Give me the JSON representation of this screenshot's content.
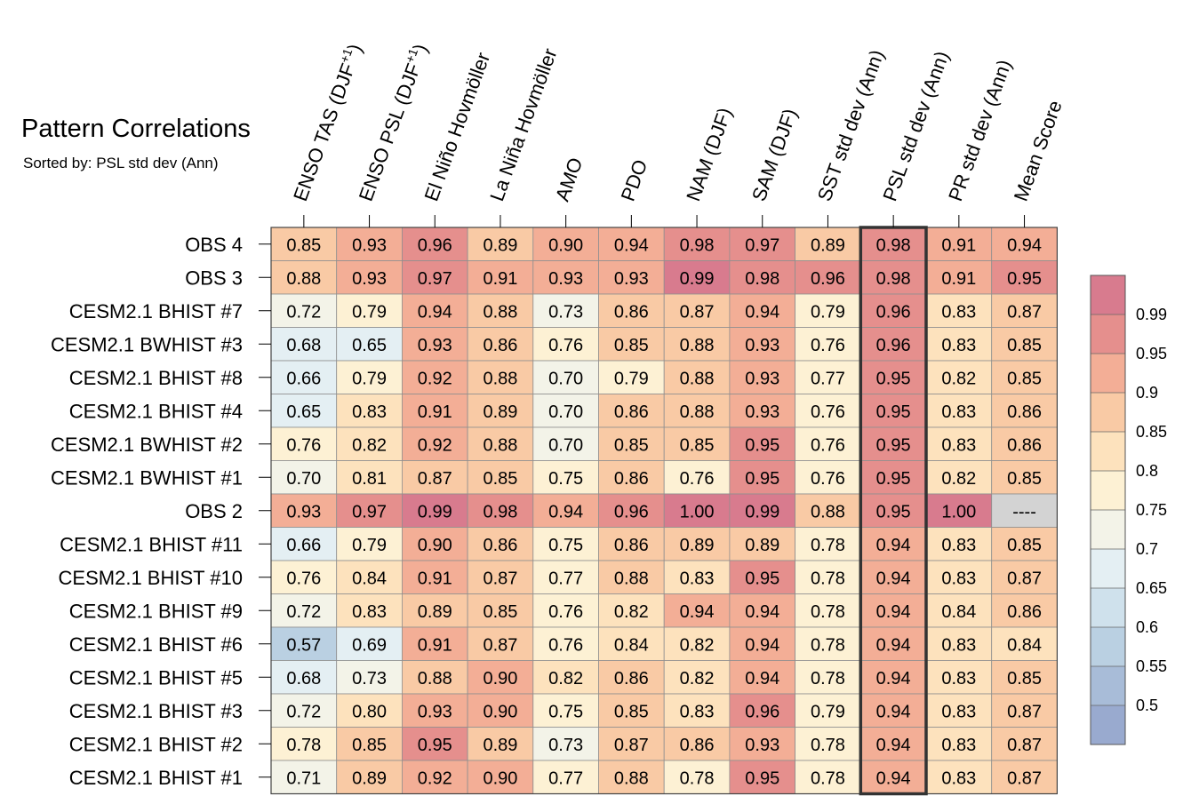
{
  "chart_data": {
    "type": "heatmap",
    "title": "Pattern Correlations",
    "subtitle": "Sorted by: PSL std dev (Ann)",
    "columns": [
      {
        "base": "ENSO TAS (DJF",
        "sup": "+1",
        "tail": ")"
      },
      {
        "base": "ENSO PSL (DJF",
        "sup": "+1",
        "tail": ")"
      },
      {
        "base": "El Niño Hovmöller"
      },
      {
        "base": "La Niña Hovmöller"
      },
      {
        "base": "AMO"
      },
      {
        "base": "PDO"
      },
      {
        "base": "NAM (DJF)"
      },
      {
        "base": "SAM (DJF)"
      },
      {
        "base": "SST std dev (Ann)"
      },
      {
        "base": "PSL std dev (Ann)"
      },
      {
        "base": "PR std dev (Ann)"
      },
      {
        "base": "Mean Score"
      }
    ],
    "sorted_column_index": 9,
    "rows": [
      "OBS 4",
      "OBS 3",
      "CESM2.1 BHIST #7",
      "CESM2.1 BWHIST #3",
      "CESM2.1 BHIST #8",
      "CESM2.1 BHIST #4",
      "CESM2.1 BWHIST #2",
      "CESM2.1 BWHIST #1",
      "OBS 2",
      "CESM2.1 BHIST #11",
      "CESM2.1 BHIST #10",
      "CESM2.1 BHIST #9",
      "CESM2.1 BHIST #6",
      "CESM2.1 BHIST #5",
      "CESM2.1 BHIST #3",
      "CESM2.1 BHIST #2",
      "CESM2.1 BHIST #1"
    ],
    "values": [
      [
        0.85,
        0.93,
        0.96,
        0.89,
        0.9,
        0.94,
        0.98,
        0.97,
        0.89,
        0.98,
        0.91,
        0.94
      ],
      [
        0.88,
        0.93,
        0.97,
        0.91,
        0.93,
        0.93,
        0.99,
        0.98,
        0.96,
        0.98,
        0.91,
        0.95
      ],
      [
        0.72,
        0.79,
        0.94,
        0.88,
        0.73,
        0.86,
        0.87,
        0.94,
        0.79,
        0.96,
        0.83,
        0.87
      ],
      [
        0.68,
        0.65,
        0.93,
        0.86,
        0.76,
        0.85,
        0.88,
        0.93,
        0.76,
        0.96,
        0.83,
        0.85
      ],
      [
        0.66,
        0.79,
        0.92,
        0.88,
        0.7,
        0.79,
        0.88,
        0.93,
        0.77,
        0.95,
        0.82,
        0.85
      ],
      [
        0.65,
        0.83,
        0.91,
        0.89,
        0.7,
        0.86,
        0.88,
        0.93,
        0.76,
        0.95,
        0.83,
        0.86
      ],
      [
        0.76,
        0.82,
        0.92,
        0.88,
        0.7,
        0.85,
        0.85,
        0.95,
        0.76,
        0.95,
        0.83,
        0.86
      ],
      [
        0.7,
        0.81,
        0.87,
        0.85,
        0.75,
        0.86,
        0.76,
        0.95,
        0.76,
        0.95,
        0.82,
        0.85
      ],
      [
        0.93,
        0.97,
        0.99,
        0.98,
        0.94,
        0.96,
        1.0,
        0.99,
        0.88,
        0.95,
        1.0,
        null
      ],
      [
        0.66,
        0.79,
        0.9,
        0.86,
        0.75,
        0.86,
        0.89,
        0.89,
        0.78,
        0.94,
        0.83,
        0.85
      ],
      [
        0.76,
        0.84,
        0.91,
        0.87,
        0.77,
        0.88,
        0.83,
        0.95,
        0.78,
        0.94,
        0.83,
        0.87
      ],
      [
        0.72,
        0.83,
        0.89,
        0.85,
        0.76,
        0.82,
        0.94,
        0.94,
        0.78,
        0.94,
        0.84,
        0.86
      ],
      [
        0.57,
        0.69,
        0.91,
        0.87,
        0.76,
        0.84,
        0.82,
        0.94,
        0.78,
        0.94,
        0.83,
        0.84
      ],
      [
        0.68,
        0.73,
        0.88,
        0.9,
        0.82,
        0.86,
        0.82,
        0.94,
        0.78,
        0.94,
        0.83,
        0.85
      ],
      [
        0.72,
        0.8,
        0.93,
        0.9,
        0.75,
        0.85,
        0.83,
        0.96,
        0.79,
        0.94,
        0.83,
        0.87
      ],
      [
        0.78,
        0.85,
        0.95,
        0.89,
        0.73,
        0.87,
        0.86,
        0.93,
        0.78,
        0.94,
        0.83,
        0.87
      ],
      [
        0.71,
        0.89,
        0.92,
        0.9,
        0.77,
        0.88,
        0.78,
        0.95,
        0.78,
        0.94,
        0.83,
        0.87
      ]
    ],
    "missing_label": "----",
    "colorbar": {
      "levels": [
        0.5,
        0.55,
        0.6,
        0.65,
        0.7,
        0.75,
        0.8,
        0.85,
        0.9,
        0.95,
        0.99
      ],
      "labels": [
        "0.5",
        "0.55",
        "0.6",
        "0.65",
        "0.7",
        "0.75",
        "0.8",
        "0.85",
        "0.9",
        "0.95",
        "0.99"
      ],
      "colors": [
        "#99aacf",
        "#a8bcd8",
        "#bad0e2",
        "#cfe1ec",
        "#e4eff3",
        "#f3f3e8",
        "#fdf1d4",
        "#fde2bd",
        "#f9caa5",
        "#f3ae96",
        "#e58f8d",
        "#d87b8e"
      ]
    },
    "missing_color": "#d3d3d3"
  }
}
